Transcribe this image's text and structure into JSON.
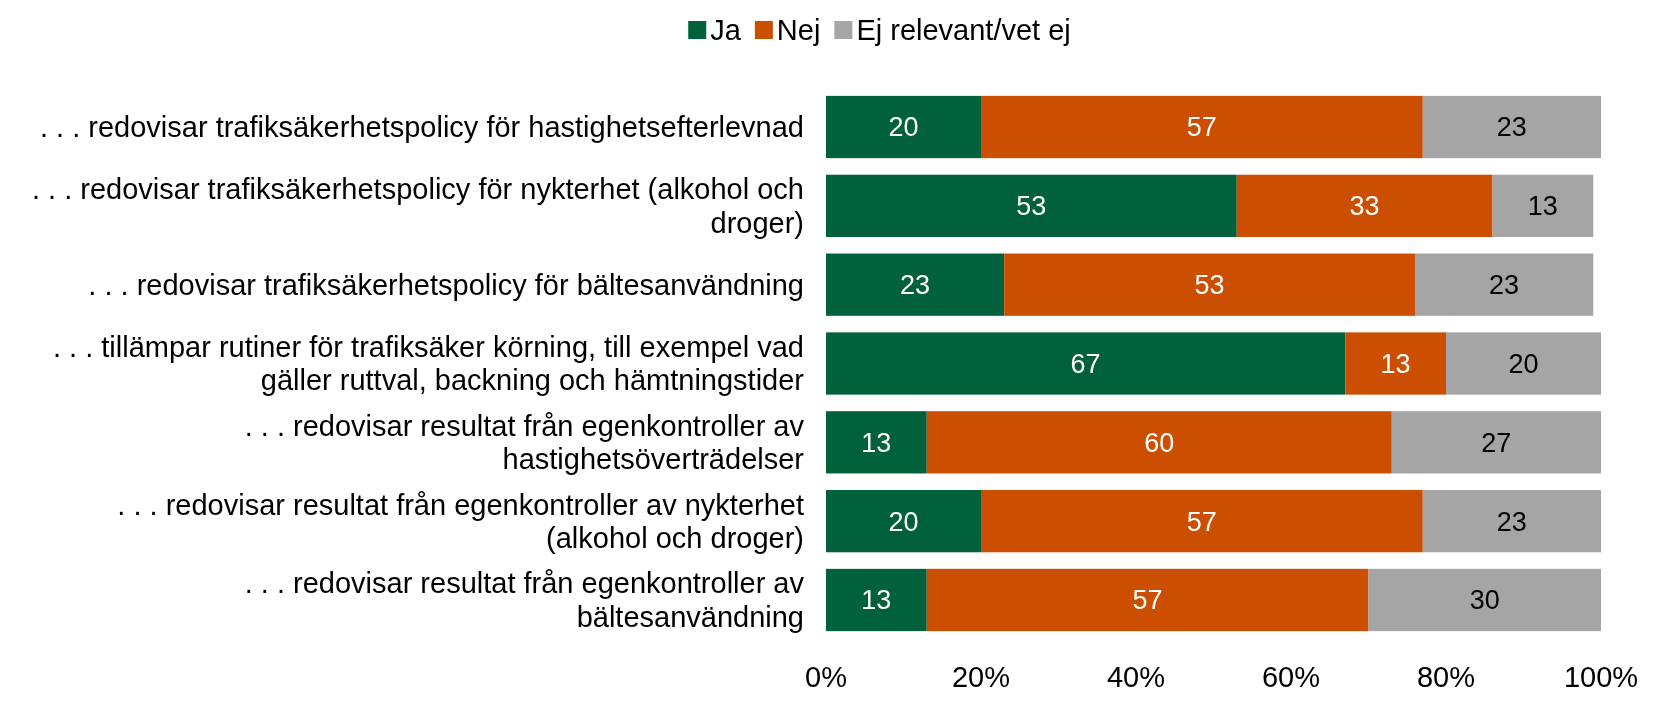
{
  "chart_data": {
    "type": "bar",
    "orientation": "horizontal",
    "stacked": true,
    "data_labels": true,
    "legend": "top",
    "grid": false,
    "categories": [
      ". . . redovisar trafiksäkerhetspolicy för hastighetsefterlevnad",
      ". . . redovisar trafiksäkerhetspolicy för nykterhet (alkohol och droger)",
      ". . . redovisar trafiksäkerhetspolicy för bältesanvändning",
      ". . . tillämpar rutiner för trafiksäker körning, till exempel vad gäller ruttval, backning och hämtningstider",
      ". . . redovisar resultat från egenkontroller av hastighetsöverträdelser",
      ". . . redovisar resultat från egenkontroller av nykterhet (alkohol och droger)",
      ". . . redovisar resultat från egenkontroller av bältesanvändning"
    ],
    "series": [
      {
        "name": "Ja",
        "color": "#00613a",
        "values": [
          20,
          53,
          23,
          67,
          13,
          20,
          13
        ]
      },
      {
        "name": "Nej",
        "color": "#cc4e00",
        "values": [
          57,
          33,
          53,
          13,
          60,
          57,
          57
        ]
      },
      {
        "name": "Ej relevant/vet ej",
        "color": "#a5a5a5",
        "values": [
          23,
          13,
          23,
          20,
          27,
          23,
          30
        ]
      }
    ],
    "xlim": [
      0,
      100
    ],
    "xticks": [
      {
        "value": 0,
        "label": "0%"
      },
      {
        "value": 20,
        "label": "20%"
      },
      {
        "value": 40,
        "label": "40%"
      },
      {
        "value": 60,
        "label": "60%"
      },
      {
        "value": 80,
        "label": "80%"
      },
      {
        "value": 100,
        "label": "100%"
      }
    ]
  }
}
